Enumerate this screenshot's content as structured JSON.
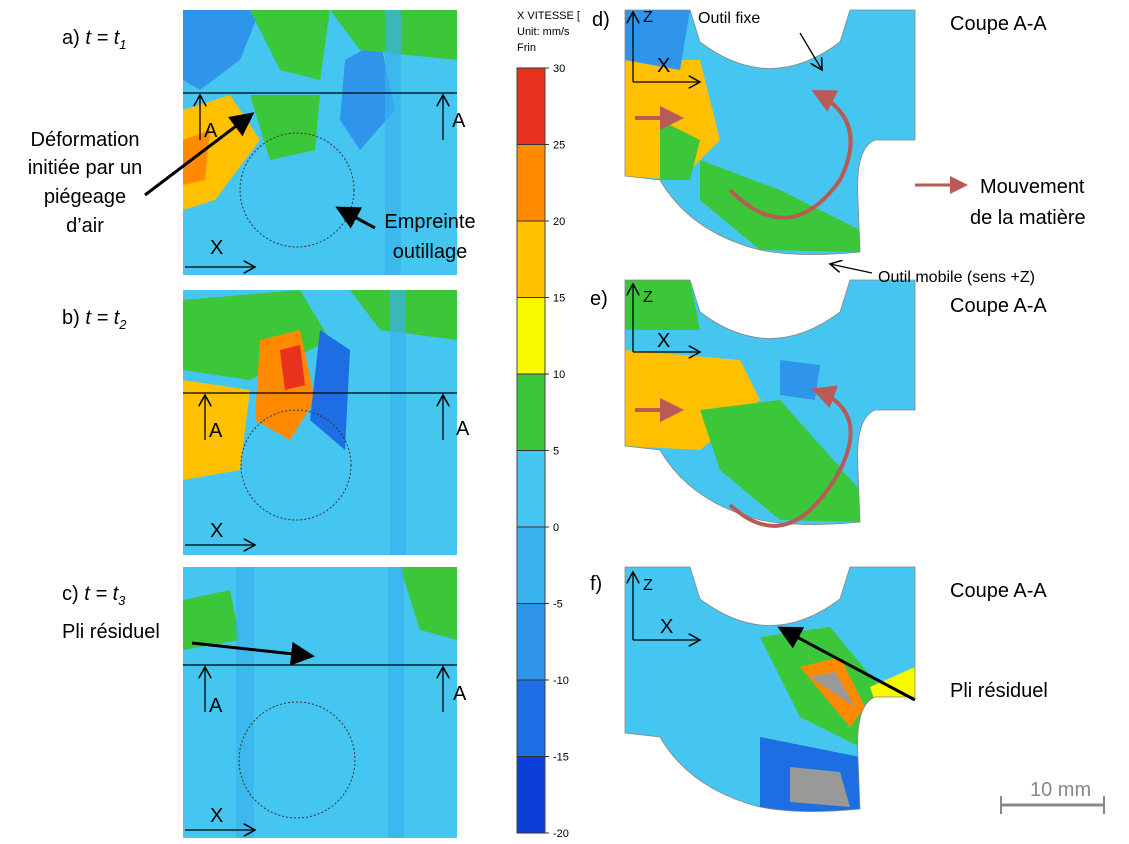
{
  "left_panels": [
    {
      "label": "a)",
      "expression": "t = t",
      "subscript": "1",
      "section_labels": [
        "A",
        "A"
      ],
      "axis_label": "X"
    },
    {
      "label": "b)",
      "expression": "t = t",
      "subscript": "2",
      "section_labels": [
        "A",
        "A"
      ],
      "axis_label": "X"
    },
    {
      "label": "c)",
      "expression": "t = t",
      "subscript": "3",
      "section_labels": [
        "A",
        "A"
      ],
      "axis_label": "X"
    }
  ],
  "left_annotations": {
    "deformation": [
      "Déformation",
      "initiée par un",
      "piégeage",
      "d’air"
    ],
    "empreinte": [
      "Empreinte",
      "outillage"
    ],
    "pli": "Pli résiduel"
  },
  "colorbar": {
    "header": [
      "X VITESSE [",
      "Unit: mm/s",
      "Frin"
    ],
    "ylim": [
      -20,
      30
    ],
    "ticks": [
      -20,
      -15,
      -10,
      -5,
      0,
      5,
      10,
      15,
      20,
      25,
      30
    ],
    "colors": [
      "#0b3fd8",
      "#1d6ee2",
      "#2f95ea",
      "#39b2ee",
      "#45c6f0",
      "#3cc63a",
      "#f8f800",
      "#ffc000",
      "#ff8a00",
      "#e8321e"
    ]
  },
  "right_panels": [
    {
      "label": "d)",
      "axes": [
        "Z",
        "X"
      ],
      "title": "Coupe A-A"
    },
    {
      "label": "e)",
      "axes": [
        "Z",
        "X"
      ],
      "title": "Coupe A-A"
    },
    {
      "label": "f)",
      "axes": [
        "Z",
        "X"
      ],
      "title": "Coupe A-A"
    }
  ],
  "right_annotations": {
    "outil_fixe": "Outil fixe",
    "outil_mobile": "Outil mobile (sens +Z)",
    "mouvement": [
      "Mouvement",
      "de la matière"
    ],
    "pli": "Pli résiduel"
  },
  "scale_bar": "10 mm"
}
